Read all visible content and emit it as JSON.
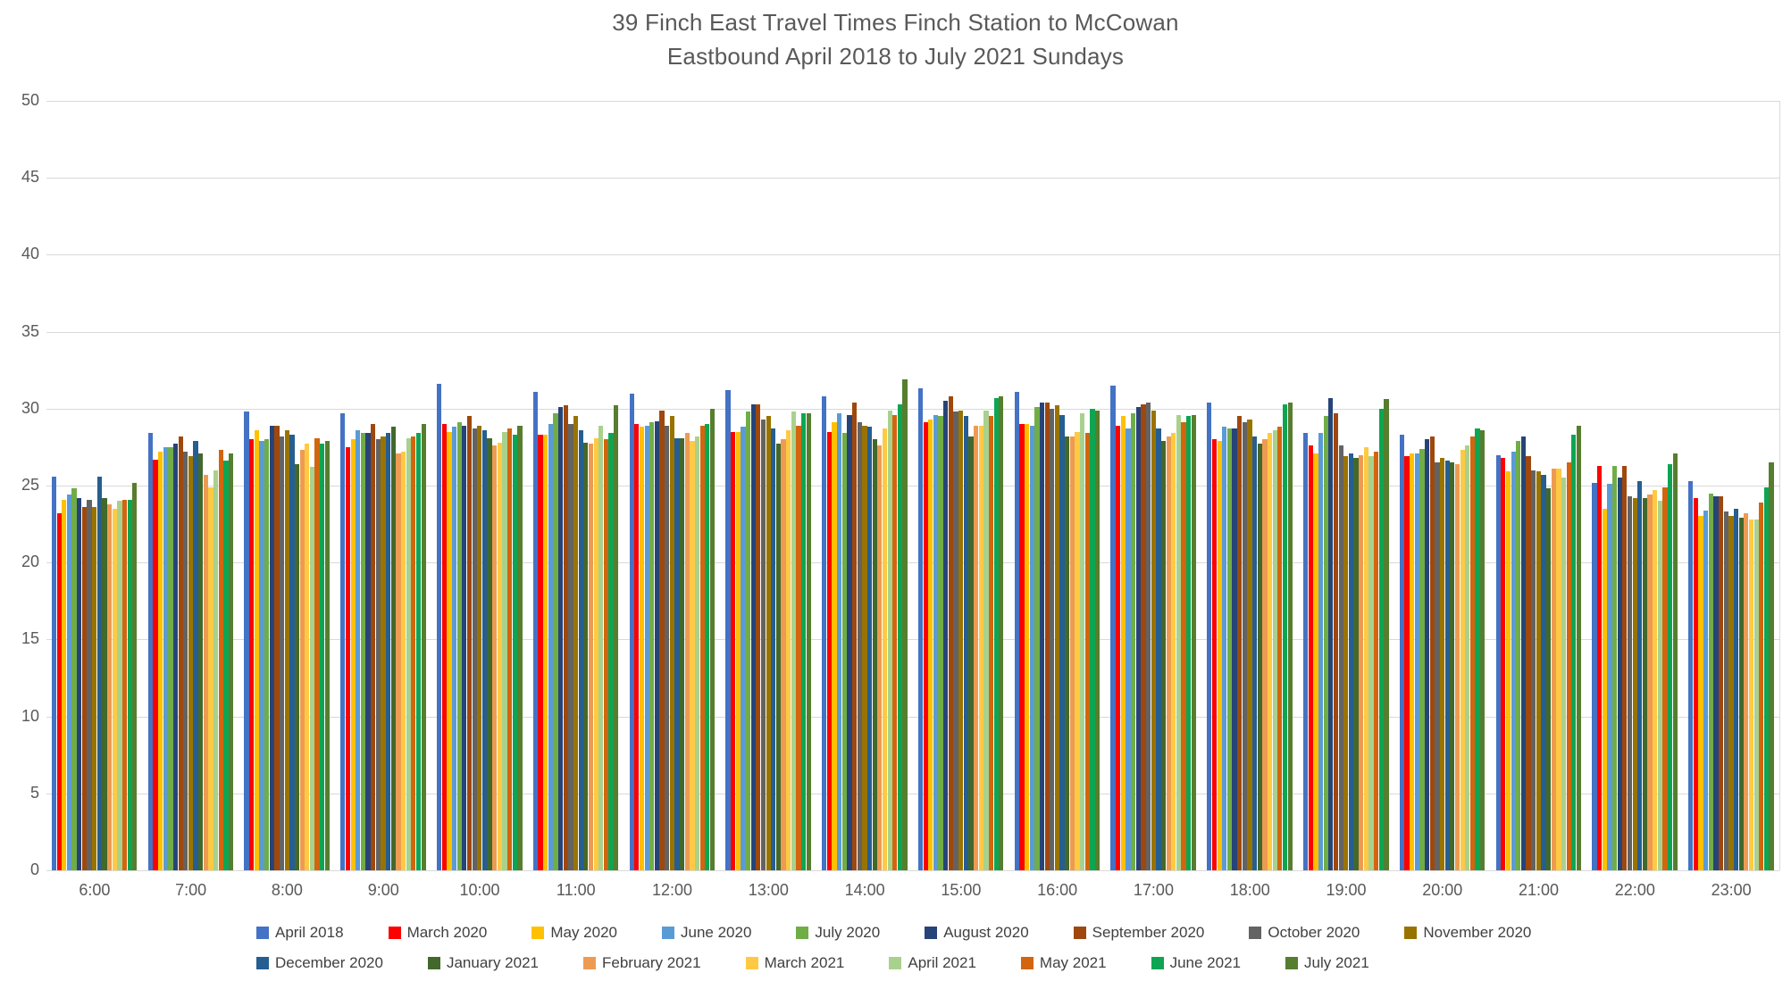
{
  "chart_data": {
    "type": "bar",
    "title_line1": "39 Finch East Travel Times Finch Station to McCowan",
    "title_line2": "Eastbound April 2018 to July 2021 Sundays",
    "xlabel": "",
    "ylabel": "",
    "grid": true,
    "legend_position": "bottom",
    "y_axis": {
      "min": 0,
      "max": 50,
      "step": 5,
      "ticks": [
        0,
        5,
        10,
        15,
        20,
        25,
        30,
        35,
        40,
        45,
        50
      ]
    },
    "categories": [
      "6:00",
      "7:00",
      "8:00",
      "9:00",
      "10:00",
      "11:00",
      "12:00",
      "13:00",
      "14:00",
      "15:00",
      "16:00",
      "17:00",
      "18:00",
      "19:00",
      "20:00",
      "21:00",
      "22:00",
      "23:00"
    ],
    "series": [
      {
        "name": "April 2018",
        "color": "#4472C4",
        "values": [
          25.6,
          28.4,
          29.8,
          29.7,
          31.6,
          31.1,
          31.0,
          31.2,
          30.8,
          31.3,
          31.1,
          31.5,
          30.4,
          28.4,
          28.3,
          27.0,
          25.2,
          25.3
        ]
      },
      {
        "name": "March 2020",
        "color": "#FF0000",
        "values": [
          23.2,
          26.7,
          28.0,
          27.5,
          29.0,
          28.3,
          29.0,
          28.5,
          28.5,
          29.1,
          29.0,
          28.9,
          28.0,
          27.6,
          26.9,
          26.8,
          26.3,
          24.2
        ]
      },
      {
        "name": "May 2020",
        "color": "#FFC000",
        "values": [
          24.1,
          27.2,
          28.6,
          28.0,
          28.5,
          28.3,
          28.8,
          28.5,
          29.1,
          29.3,
          29.0,
          29.5,
          27.9,
          27.1,
          27.1,
          25.9,
          23.5,
          23.0
        ]
      },
      {
        "name": "June 2020",
        "color": "#5B9BD5",
        "values": [
          24.4,
          27.5,
          27.9,
          28.6,
          28.8,
          29.0,
          28.9,
          28.8,
          29.7,
          29.6,
          28.9,
          28.7,
          28.8,
          28.4,
          27.1,
          27.2,
          25.1,
          23.4
        ]
      },
      {
        "name": "July 2020",
        "color": "#70AD47",
        "values": [
          24.8,
          27.5,
          28.0,
          28.4,
          29.1,
          29.7,
          29.1,
          29.8,
          28.4,
          29.5,
          30.1,
          29.7,
          28.7,
          29.5,
          27.4,
          27.9,
          26.3,
          24.5
        ]
      },
      {
        "name": "August 2020",
        "color": "#264478",
        "values": [
          24.2,
          27.7,
          28.9,
          28.4,
          28.9,
          30.1,
          29.2,
          30.3,
          29.6,
          30.5,
          30.4,
          30.1,
          28.7,
          30.7,
          28.0,
          28.2,
          25.5,
          24.3
        ]
      },
      {
        "name": "September 2020",
        "color": "#9E480E",
        "values": [
          23.6,
          28.2,
          28.9,
          29.0,
          29.5,
          30.2,
          29.9,
          30.3,
          30.4,
          30.8,
          30.4,
          30.3,
          29.5,
          29.7,
          28.2,
          26.9,
          26.3,
          24.3
        ]
      },
      {
        "name": "October 2020",
        "color": "#636363",
        "values": [
          24.1,
          27.2,
          28.2,
          28.0,
          28.7,
          29.0,
          28.9,
          29.3,
          29.1,
          29.8,
          30.0,
          30.4,
          29.1,
          27.6,
          26.5,
          26.0,
          24.3,
          23.3
        ]
      },
      {
        "name": "November 2020",
        "color": "#997300",
        "values": [
          23.6,
          26.9,
          28.6,
          28.2,
          28.9,
          29.5,
          29.5,
          29.5,
          28.9,
          29.9,
          30.2,
          29.9,
          29.3,
          26.9,
          26.8,
          25.9,
          24.2,
          23.0
        ]
      },
      {
        "name": "December 2020",
        "color": "#255E91",
        "values": [
          25.6,
          27.9,
          28.3,
          28.4,
          28.6,
          28.6,
          28.1,
          28.7,
          28.8,
          29.5,
          29.6,
          28.7,
          28.2,
          27.1,
          26.6,
          25.7,
          25.3,
          23.5
        ]
      },
      {
        "name": "January 2021",
        "color": "#43682B",
        "values": [
          24.2,
          27.1,
          26.4,
          28.8,
          28.1,
          27.8,
          28.1,
          27.7,
          28.0,
          28.2,
          28.2,
          27.9,
          27.7,
          26.8,
          26.5,
          24.8,
          24.2,
          22.9
        ]
      },
      {
        "name": "February 2021",
        "color": "#ED9B53",
        "values": [
          23.8,
          25.7,
          27.3,
          27.1,
          27.6,
          27.7,
          28.4,
          28.0,
          27.6,
          28.9,
          28.2,
          28.2,
          28.0,
          27.0,
          26.4,
          26.1,
          24.4,
          23.2
        ]
      },
      {
        "name": "March 2021",
        "color": "#FFC943",
        "values": [
          23.5,
          24.9,
          27.7,
          27.2,
          27.8,
          28.1,
          27.9,
          28.6,
          28.7,
          28.9,
          28.5,
          28.4,
          28.4,
          27.5,
          27.3,
          26.1,
          24.7,
          22.8
        ]
      },
      {
        "name": "April 2021",
        "color": "#A9D18E",
        "values": [
          24.0,
          26.0,
          26.2,
          28.1,
          28.5,
          28.9,
          28.2,
          29.8,
          29.9,
          29.9,
          29.7,
          29.6,
          28.6,
          26.9,
          27.6,
          25.5,
          24.0,
          22.8
        ]
      },
      {
        "name": "May 2021",
        "color": "#D2650E",
        "values": [
          24.1,
          27.3,
          28.1,
          28.2,
          28.7,
          28.0,
          28.9,
          28.9,
          29.6,
          29.5,
          28.4,
          29.1,
          28.8,
          27.2,
          28.2,
          26.5,
          24.9,
          23.9
        ]
      },
      {
        "name": "June 2021",
        "color": "#0EA552",
        "values": [
          24.1,
          26.6,
          27.7,
          28.4,
          28.3,
          28.4,
          29.0,
          29.7,
          30.3,
          30.7,
          30.0,
          29.5,
          30.3,
          30.0,
          28.7,
          28.3,
          26.4,
          24.9
        ]
      },
      {
        "name": "July 2021",
        "color": "#567E2E",
        "values": [
          25.2,
          27.1,
          27.9,
          29.0,
          28.9,
          30.2,
          30.0,
          29.7,
          31.9,
          30.8,
          29.9,
          29.6,
          30.4,
          30.6,
          28.6,
          28.9,
          27.1,
          26.5
        ]
      }
    ],
    "legend_rows": [
      9,
      8
    ]
  }
}
